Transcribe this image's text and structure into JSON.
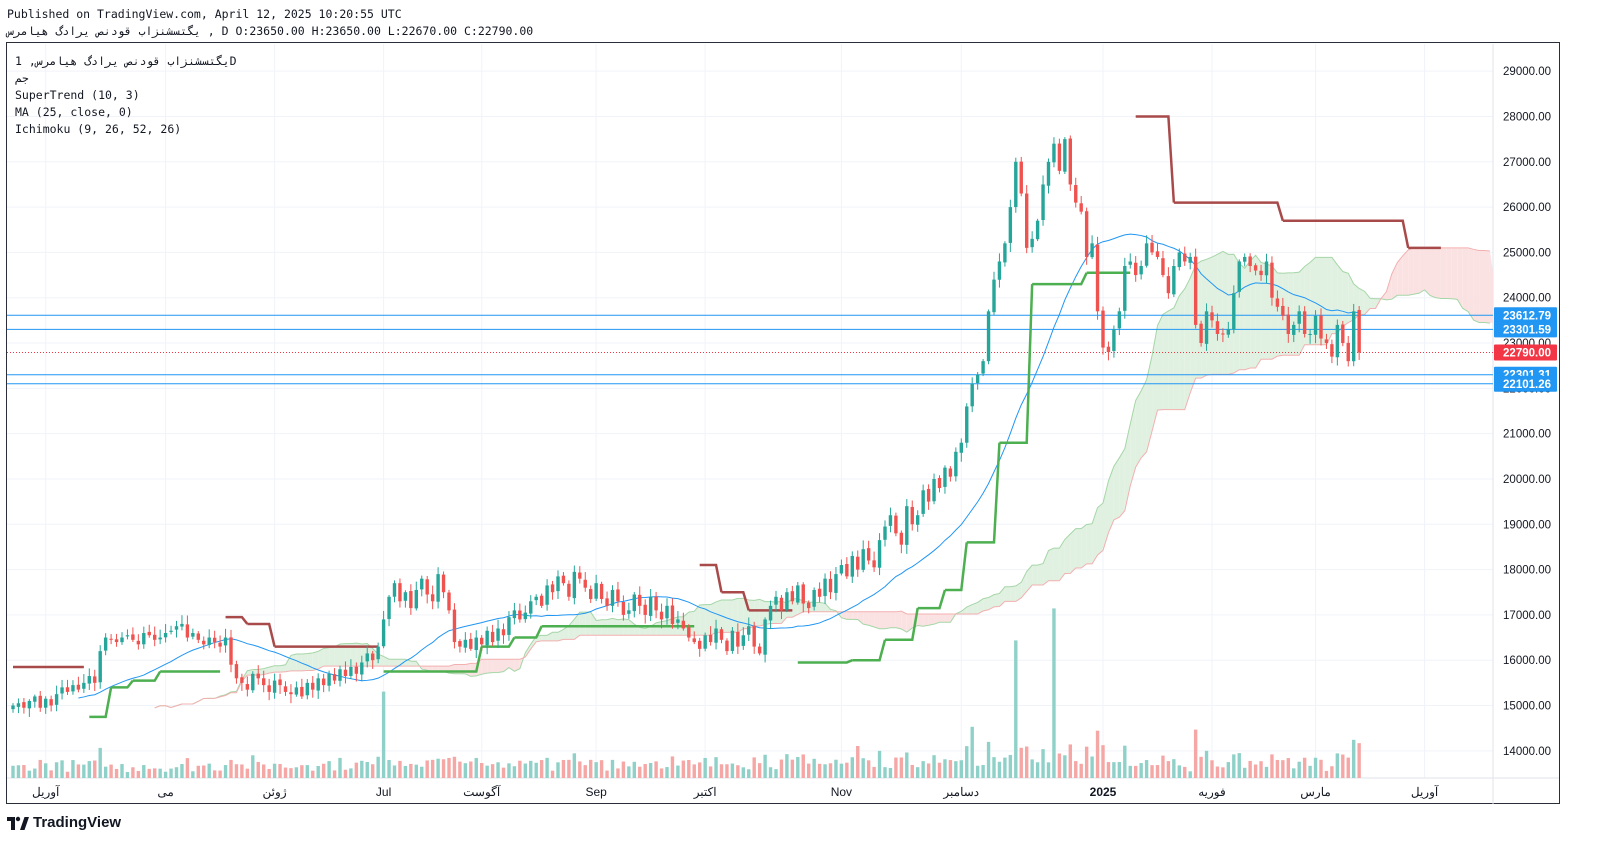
{
  "header": {
    "published": "Published on TradingView.com, April 12, 2025 10:20:55 UTC",
    "ohlc": "یگتسشنزاب قودنص یرادگ هیامرس , D O:23650.00 H:23650.00 L:22670.00 C:22790.00"
  },
  "legend": {
    "symbol": "یگتسشنزاب قودنص یرادگ هیامرس, 1D",
    "exchange": "جم",
    "supertrend": "SuperTrend (10, 3)",
    "ma": "MA (25, close, 0)",
    "ichimoku": "Ichimoku (9, 26, 52, 26)"
  },
  "brand": {
    "name": "TradingView"
  },
  "colors": {
    "up": "#26a69a",
    "down": "#ef5350",
    "vol_up": "#8fd1c8",
    "vol_down": "#f5a7a6",
    "supertrend_up": "#4caf50",
    "supertrend_down": "#a84a4a",
    "ma": "#2196f3",
    "cloud_green": "#e1f1e1",
    "cloud_red": "#fbe2e2",
    "span_green": "#a5d6a7",
    "span_red": "#f3b0b0",
    "hline": "#2196f3",
    "price_label": "#2196f3",
    "last_price": "#f23645"
  },
  "chart_data": {
    "type": "candlestick",
    "ylim": [
      13400,
      29600
    ],
    "y_ticks": [
      "14000.00",
      "15000.00",
      "16000.00",
      "17000.00",
      "18000.00",
      "19000.00",
      "20000.00",
      "21000.00",
      "22000.00",
      "23000.00",
      "24000.00",
      "25000.00",
      "26000.00",
      "27000.00",
      "28000.00",
      "29000.00"
    ],
    "x_labels": [
      {
        "label": "آوریل",
        "i": 6
      },
      {
        "label": "می",
        "i": 28
      },
      {
        "label": "ژوئن",
        "i": 48
      },
      {
        "label": "Jul",
        "i": 68
      },
      {
        "label": "آگوست",
        "i": 86
      },
      {
        "label": "Sep",
        "i": 107
      },
      {
        "label": "اکتبر",
        "i": 127
      },
      {
        "label": "Nov",
        "i": 152
      },
      {
        "label": "دسامبر",
        "i": 174
      },
      {
        "label": "2025",
        "i": 200
      },
      {
        "label": "فوریه",
        "i": 220
      },
      {
        "label": "مارس",
        "i": 239
      },
      {
        "label": "آوریل",
        "i": 259
      }
    ],
    "horizontal_levels": [
      23612.79,
      23301.59,
      22301.31,
      22101.26
    ],
    "price_labels": [
      "23612.79",
      "23301.59",
      "22790.00",
      "22301.31",
      "22101.26"
    ],
    "last_price": 22790.0,
    "close": [
      15000,
      15050,
      14950,
      15100,
      15200,
      14950,
      15150,
      15000,
      15250,
      15400,
      15300,
      15450,
      15350,
      15500,
      15650,
      15500,
      16200,
      16500,
      16450,
      16400,
      16500,
      16550,
      16450,
      16350,
      16600,
      16550,
      16450,
      16500,
      16600,
      16650,
      16750,
      16800,
      16500,
      16600,
      16450,
      16350,
      16500,
      16400,
      16300,
      16500,
      15900,
      15600,
      15500,
      15350,
      15700,
      15600,
      15450,
      15300,
      15550,
      15450,
      15300,
      15250,
      15400,
      15200,
      15500,
      15350,
      15600,
      15450,
      15700,
      15550,
      15800,
      15650,
      15850,
      15700,
      15950,
      16150,
      16000,
      16300,
      16900,
      17400,
      17700,
      17300,
      17500,
      17150,
      17550,
      17800,
      17450,
      17300,
      17900,
      17500,
      17100,
      16400,
      16300,
      16450,
      16250,
      16500,
      16350,
      16650,
      16400,
      16700,
      16550,
      16950,
      17100,
      16900,
      17050,
      17300,
      17400,
      17200,
      17650,
      17500,
      17850,
      17700,
      17400,
      17950,
      17800,
      17600,
      17350,
      17700,
      17350,
      17200,
      17550,
      17300,
      17000,
      17100,
      17450,
      17200,
      17000,
      17400,
      17100,
      16900,
      17200,
      16800,
      16900,
      16700,
      16500,
      16400,
      16250,
      16550,
      16400,
      16700,
      16450,
      16200,
      16650,
      16300,
      16550,
      16750,
      16300,
      16150,
      16900,
      17200,
      17400,
      17100,
      17500,
      17300,
      17650,
      17250,
      17150,
      17550,
      17400,
      17800,
      17500,
      17900,
      18100,
      17850,
      18300,
      18000,
      18450,
      18200,
      18050,
      18650,
      18950,
      19200,
      18800,
      18550,
      19400,
      19000,
      19200,
      19750,
      19500,
      20000,
      19800,
      20250,
      20050,
      20600,
      20800,
      21600,
      22100,
      22300,
      22600,
      23700,
      24400,
      24800,
      25200,
      26000,
      27000,
      26300,
      25100,
      25300,
      25700,
      26500,
      27000,
      27400,
      26800,
      27500,
      26500,
      26100,
      25900,
      24900,
      25200,
      23700,
      22900,
      22800,
      23300,
      23700,
      24700,
      24800,
      24500,
      24700,
      25200,
      25000,
      24900,
      24500,
      24100,
      24700,
      25000,
      24800,
      24900,
      23400,
      23000,
      23700,
      23500,
      23200,
      23200,
      23300,
      24100,
      24800,
      24900,
      24700,
      24600,
      24500,
      24800,
      24000,
      23800,
      23600,
      23200,
      23400,
      23700,
      23200,
      23200,
      23600,
      23100,
      23000,
      22700,
      23400,
      23000,
      22600,
      23700,
      22790
    ],
    "ma_start": 12,
    "supertrend_levels": [
      {
        "from": 0,
        "to": 13,
        "value": 15850,
        "dir": "down"
      },
      {
        "from": 14,
        "to": 17,
        "value": 14750,
        "dir": "up"
      },
      {
        "from": 18,
        "to": 21,
        "value": 15400,
        "dir": "up"
      },
      {
        "from": 22,
        "to": 26,
        "value": 15550,
        "dir": "up"
      },
      {
        "from": 27,
        "to": 38,
        "value": 15750,
        "dir": "up"
      },
      {
        "from": 39,
        "to": 42,
        "value": 16950,
        "dir": "down"
      },
      {
        "from": 43,
        "to": 47,
        "value": 16800,
        "dir": "down"
      },
      {
        "from": 48,
        "to": 67,
        "value": 16300,
        "dir": "down"
      },
      {
        "from": 68,
        "to": 85,
        "value": 15750,
        "dir": "up"
      },
      {
        "from": 86,
        "to": 91,
        "value": 16300,
        "dir": "up"
      },
      {
        "from": 92,
        "to": 96,
        "value": 16500,
        "dir": "up"
      },
      {
        "from": 97,
        "to": 125,
        "value": 16750,
        "dir": "up"
      },
      {
        "from": 126,
        "to": 129,
        "value": 18100,
        "dir": "down"
      },
      {
        "from": 130,
        "to": 134,
        "value": 17500,
        "dir": "down"
      },
      {
        "from": 135,
        "to": 143,
        "value": 17100,
        "dir": "down"
      },
      {
        "from": 144,
        "to": 153,
        "value": 15950,
        "dir": "up"
      },
      {
        "from": 154,
        "to": 159,
        "value": 16000,
        "dir": "up"
      },
      {
        "from": 160,
        "to": 165,
        "value": 16450,
        "dir": "up"
      },
      {
        "from": 166,
        "to": 170,
        "value": 17150,
        "dir": "up"
      },
      {
        "from": 171,
        "to": 174,
        "value": 17550,
        "dir": "up"
      },
      {
        "from": 175,
        "to": 180,
        "value": 18600,
        "dir": "up"
      },
      {
        "from": 181,
        "to": 186,
        "value": 20800,
        "dir": "up"
      },
      {
        "from": 187,
        "to": 196,
        "value": 24300,
        "dir": "up"
      },
      {
        "from": 197,
        "to": 205,
        "value": 24550,
        "dir": "up"
      },
      {
        "from": 206,
        "to": 212,
        "value": 28000,
        "dir": "down"
      },
      {
        "from": 213,
        "to": 232,
        "value": 26100,
        "dir": "down"
      },
      {
        "from": 233,
        "to": 255,
        "value": 25700,
        "dir": "down"
      },
      {
        "from": 256,
        "to": 262,
        "value": 25100,
        "dir": "down"
      }
    ]
  }
}
